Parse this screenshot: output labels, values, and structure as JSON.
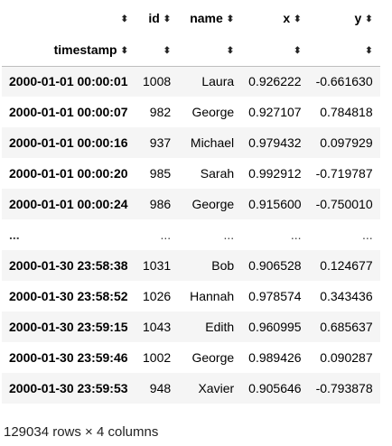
{
  "table": {
    "columns": [
      "id",
      "name",
      "x",
      "y"
    ],
    "index_name": "timestamp",
    "sort_icon": "⬍",
    "rows": [
      {
        "ts": "2000-01-01 00:00:01",
        "id": "1008",
        "name": "Laura",
        "x": "0.926222",
        "y": "-0.661630"
      },
      {
        "ts": "2000-01-01 00:00:07",
        "id": "982",
        "name": "George",
        "x": "0.927107",
        "y": "0.784818"
      },
      {
        "ts": "2000-01-01 00:00:16",
        "id": "937",
        "name": "Michael",
        "x": "0.979432",
        "y": "0.097929"
      },
      {
        "ts": "2000-01-01 00:00:20",
        "id": "985",
        "name": "Sarah",
        "x": "0.992912",
        "y": "-0.719787"
      },
      {
        "ts": "2000-01-01 00:00:24",
        "id": "986",
        "name": "George",
        "x": "0.915600",
        "y": "-0.750010"
      },
      {
        "ts": "...",
        "id": "...",
        "name": "...",
        "x": "...",
        "y": "..."
      },
      {
        "ts": "2000-01-30 23:58:38",
        "id": "1031",
        "name": "Bob",
        "x": "0.906528",
        "y": "0.124677"
      },
      {
        "ts": "2000-01-30 23:58:52",
        "id": "1026",
        "name": "Hannah",
        "x": "0.978574",
        "y": "0.343436"
      },
      {
        "ts": "2000-01-30 23:59:15",
        "id": "1043",
        "name": "Edith",
        "x": "0.960995",
        "y": "0.685637"
      },
      {
        "ts": "2000-01-30 23:59:46",
        "id": "1002",
        "name": "George",
        "x": "0.989426",
        "y": "0.090287"
      },
      {
        "ts": "2000-01-30 23:59:53",
        "id": "948",
        "name": "Xavier",
        "x": "0.905646",
        "y": "-0.793878"
      }
    ]
  },
  "footer": "129034 rows × 4 columns"
}
